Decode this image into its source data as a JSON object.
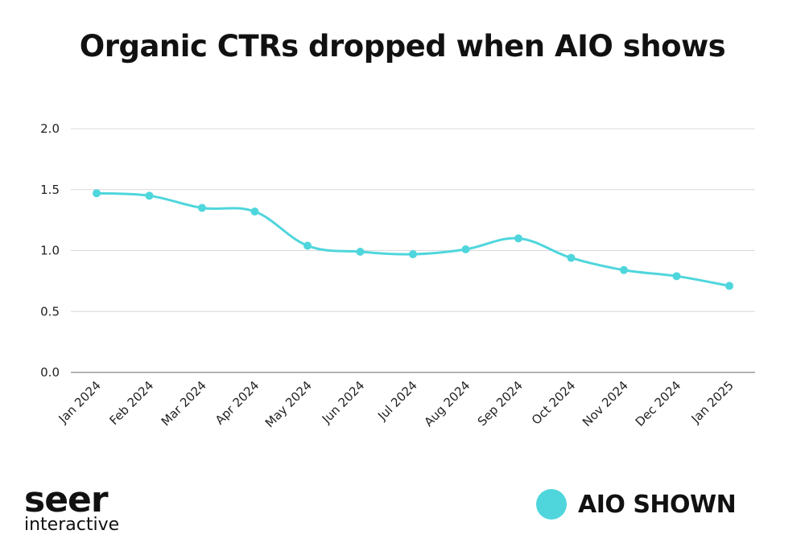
{
  "title": "Organic CTRs dropped when AIO shows",
  "colors": {
    "series": "#4fd6dc",
    "grid": "#d9d9d9",
    "axis": "#9a9a9a"
  },
  "brand": {
    "name": "seer",
    "sub": "interactive"
  },
  "legend": {
    "label": "AIO SHOWN"
  },
  "chart_data": {
    "type": "line",
    "categories": [
      "Jan 2024",
      "Feb 2024",
      "Mar 2024",
      "Apr 2024",
      "May 2024",
      "Jun 2024",
      "Jul 2024",
      "Aug 2024",
      "Sep 2024",
      "Oct 2024",
      "Nov 2024",
      "Dec 2024",
      "Jan 2025"
    ],
    "series": [
      {
        "name": "AIO SHOWN",
        "values": [
          1.47,
          1.45,
          1.35,
          1.32,
          1.04,
          0.99,
          0.97,
          1.01,
          1.1,
          0.94,
          0.84,
          0.79,
          0.71
        ]
      }
    ],
    "yticks": [
      "0.0",
      "0.5",
      "1.0",
      "1.5",
      "2.0"
    ],
    "ylim": [
      0,
      2.0
    ],
    "grid": true,
    "legend_position": "bottom-right",
    "xlabel": "",
    "ylabel": ""
  }
}
